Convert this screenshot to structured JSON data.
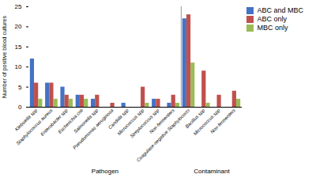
{
  "chart_data": {
    "type": "bar",
    "categories": [
      "Klebsiella spp",
      "Staphylococcus aureus",
      "Enterobacter spp",
      "Escherichia coli",
      "Salmonella spp",
      "Pseudomonas aeruginosa",
      "Candida spp",
      "Micrococcus spp",
      "Streptococcus spp",
      "Non-fermenters",
      "Coagulase-negative Staphylococci",
      "Bacillus spp",
      "Micrococcus spp",
      "Non-fermenters"
    ],
    "series": [
      {
        "name": "ABC and MBC",
        "color": "#4472C4",
        "values": [
          12,
          6,
          5,
          3,
          2,
          0,
          1,
          0,
          2,
          1,
          22,
          0,
          0,
          0
        ]
      },
      {
        "name": "ABC only",
        "color": "#C0504D",
        "values": [
          6,
          6,
          3,
          3,
          3,
          1,
          0,
          5,
          2,
          3,
          23,
          9,
          3,
          4
        ]
      },
      {
        "name": "MBC only",
        "color": "#9BBB59",
        "values": [
          2,
          2,
          2,
          2,
          0,
          0,
          0,
          1,
          0,
          1,
          11,
          1,
          0,
          2
        ]
      }
    ],
    "ylabel": "Number of positive blood cultures",
    "annotations": [
      {
        "text": "Pathogen",
        "start": 0,
        "end": 9
      },
      {
        "text": "Contaminant",
        "start": 10,
        "end": 13
      }
    ],
    "ylim": [
      0,
      25
    ],
    "yticks": [
      0,
      5,
      10,
      15,
      20,
      25
    ],
    "legend": "right"
  }
}
